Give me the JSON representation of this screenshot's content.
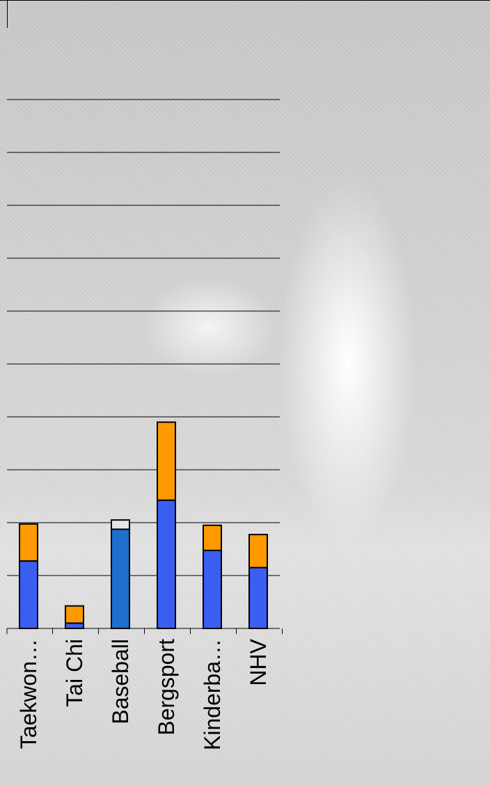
{
  "chart_data": {
    "type": "bar",
    "stacked": true,
    "categories": [
      "Taekwon…",
      "Tai Chi",
      "Baseball",
      "Bergsport",
      "Kinderba…",
      "NHV"
    ],
    "series": [
      {
        "color": "#3a5ff0",
        "values": [
          25.5,
          2,
          0,
          48.5,
          29.5,
          23
        ]
      },
      {
        "color": "#1f6fce",
        "values": [
          0,
          0,
          37.5,
          0,
          0,
          0
        ]
      },
      {
        "color": "#ff9900",
        "values": [
          14,
          6.5,
          0,
          29.5,
          9.5,
          12.5
        ]
      },
      {
        "color": "#e6e6e6",
        "values": [
          0,
          0,
          3.5,
          0,
          0,
          0
        ]
      }
    ],
    "ylim": [
      0,
      200
    ],
    "grid": true,
    "title": "",
    "xlabel": "",
    "ylabel": ""
  }
}
